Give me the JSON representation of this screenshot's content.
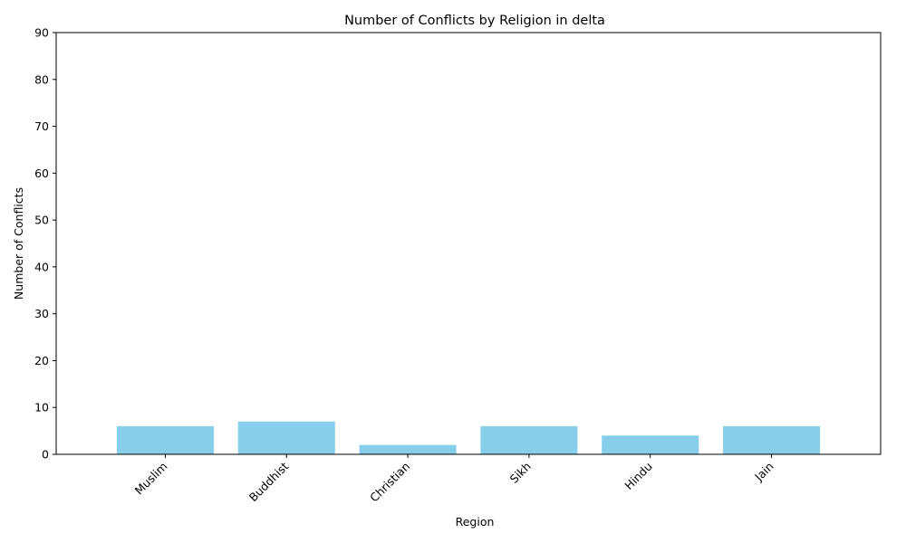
{
  "chart_data": {
    "type": "bar",
    "title": "Number of Conflicts by Religion in delta",
    "xlabel": "Region",
    "ylabel": "Number of Conflicts",
    "categories": [
      "Muslim",
      "Buddhist",
      "Christian",
      "Sikh",
      "Hindu",
      "Jain"
    ],
    "values": [
      6,
      7,
      2,
      6,
      4,
      6
    ],
    "ylim": [
      0,
      90
    ],
    "yticks": [
      0,
      10,
      20,
      30,
      40,
      50,
      60,
      70,
      80,
      90
    ],
    "grid": false,
    "bar_color": "#87CEEB"
  }
}
